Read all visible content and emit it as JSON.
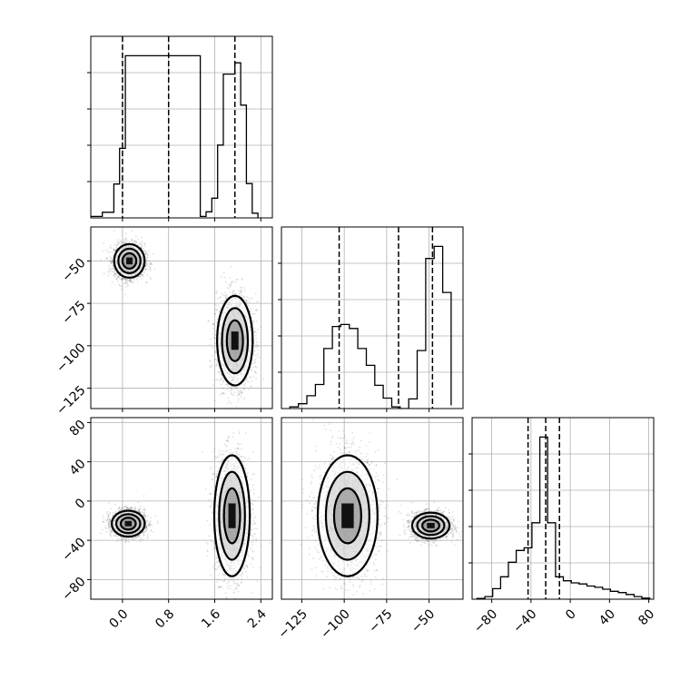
{
  "chart_data": {
    "type": "corner",
    "grid": true,
    "parameters": [
      "",
      "",
      ""
    ],
    "ranges": [
      [
        -0.55,
        2.6
      ],
      [
        -137,
        -30
      ],
      [
        -100,
        85
      ]
    ],
    "ticks": [
      {
        "values": [
          0.0,
          0.8,
          1.6,
          2.4
        ],
        "labels": [
          "0.0",
          "0.8",
          "1.6",
          "2.4"
        ]
      },
      {
        "values": [
          -125,
          -100,
          -75,
          -50
        ],
        "labels": [
          "−125",
          "−100",
          "−75",
          "−50"
        ]
      },
      {
        "values": [
          -80,
          -40,
          0,
          40,
          80
        ],
        "labels": [
          "−80",
          "−40",
          "0",
          "40",
          "80"
        ]
      }
    ],
    "histograms": [
      {
        "param": 0,
        "bins": [
          -0.55,
          -0.35,
          -0.15,
          -0.05,
          0.05,
          0.15,
          0.25,
          0.35,
          1.35,
          1.45,
          1.55,
          1.65,
          1.75,
          1.85,
          1.95,
          2.05,
          2.15,
          2.25,
          2.35
        ],
        "counts": [
          0.3,
          1.2,
          7.2,
          14.8,
          34.5,
          34.5,
          34.5,
          34.5,
          0.3,
          1.3,
          4.2,
          15.5,
          30.6,
          30.6,
          33.0,
          24.0,
          7.3,
          1.0
        ],
        "note_counts_shape": "step"
      },
      {
        "param": 1,
        "bins": [
          -132,
          -127,
          -122,
          -117,
          -112,
          -107,
          -102,
          -97,
          -92,
          -87,
          -82,
          -77,
          -72,
          -67,
          -62,
          -57,
          -52,
          -47,
          -42,
          -37
        ],
        "counts": [
          0.4,
          1.2,
          3.2,
          6.0,
          15.0,
          20.5,
          21.0,
          20.0,
          15.0,
          10.8,
          5.8,
          2.6,
          0.4,
          0.0,
          2.4,
          14.5,
          37.5,
          40.5,
          29.0,
          0.8
        ],
        "quantiles": [
          -103,
          -68,
          -48
        ]
      },
      {
        "param": 2,
        "bins": [
          -95,
          -87,
          -79,
          -71,
          -63,
          -55,
          -47,
          -39,
          -31,
          -23,
          -15,
          -7,
          1,
          9,
          17,
          25,
          33,
          41,
          49,
          57,
          65,
          73,
          81
        ],
        "counts": [
          0.3,
          1.0,
          4.0,
          8.5,
          14.0,
          18.5,
          19.5,
          29.0,
          61.5,
          29.0,
          8.5,
          7.0,
          6.2,
          5.8,
          5.0,
          4.5,
          3.8,
          3.0,
          2.5,
          1.8,
          1.0,
          0.4
        ],
        "quantiles": [
          -43,
          -25,
          -11
        ]
      }
    ],
    "histogram0_quantiles": [
      0.0,
      0.8,
      1.95
    ],
    "clusters_2d": [
      {
        "x": 0,
        "y": 1,
        "modes": [
          {
            "cx": 0.12,
            "cy": -50,
            "sx": 0.12,
            "sy": 4.5,
            "w": 0.5
          },
          {
            "cx": 1.95,
            "cy": -97,
            "sx": 0.14,
            "sy": 12,
            "w": 0.5
          }
        ]
      },
      {
        "x": 0,
        "y": 2,
        "modes": [
          {
            "cx": 0.1,
            "cy": -23,
            "sx": 0.13,
            "sy": 6,
            "w": 0.5
          },
          {
            "cx": 1.9,
            "cy": -15,
            "sx": 0.14,
            "sy": 28,
            "w": 0.5
          }
        ]
      },
      {
        "x": 1,
        "y": 2,
        "modes": [
          {
            "cx": -98,
            "cy": -15,
            "sx": 8,
            "sy": 28,
            "w": 0.5
          },
          {
            "cx": -49,
            "cy": -25,
            "sx": 5,
            "sy": 6,
            "w": 0.5
          }
        ]
      }
    ]
  }
}
